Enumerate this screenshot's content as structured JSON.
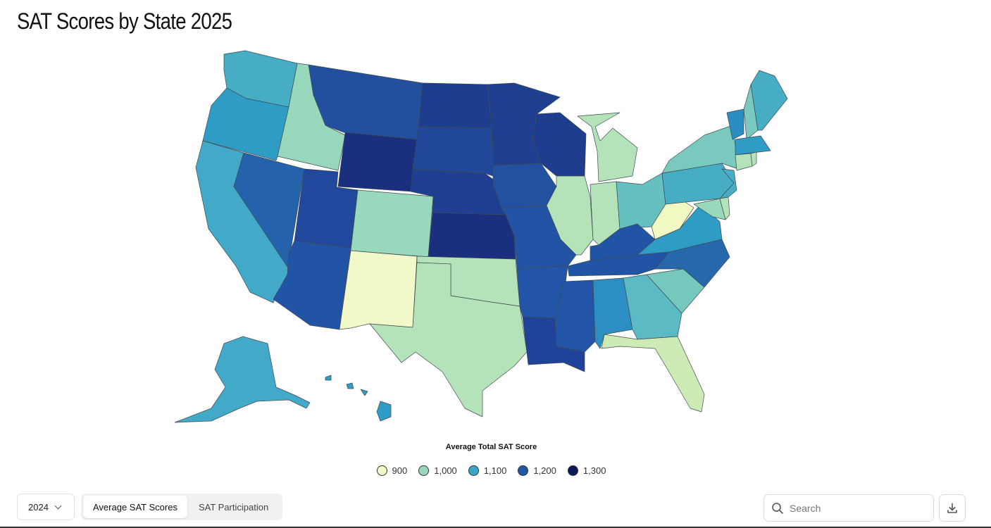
{
  "title": "SAT Scores by State 2025",
  "legend": {
    "title": "Average Total SAT Score",
    "items": [
      {
        "label": "900",
        "color": "#f2f9c9"
      },
      {
        "label": "1,000",
        "color": "#96d7bd"
      },
      {
        "label": "1,100",
        "color": "#3aa6c5"
      },
      {
        "label": "1,200",
        "color": "#2156a3"
      },
      {
        "label": "1,300",
        "color": "#0c1a5a"
      }
    ]
  },
  "controls": {
    "year": "2024",
    "tabs": [
      "Average SAT Scores",
      "SAT Participation"
    ],
    "active_tab": 0,
    "search_placeholder": "Search"
  },
  "map_data": {
    "WA": "#46adc5",
    "OR": "#2f9cc5",
    "CA": "#42aac8",
    "NV": "#2463ab",
    "ID": "#97d8bc",
    "MT": "#22509f",
    "WY": "#1a2f7e",
    "UT": "#21489c",
    "AZ": "#2254a5",
    "CO": "#98d8bc",
    "NM": "#f2f9c9",
    "ND": "#1f3d8e",
    "SD": "#21479a",
    "NE": "#1e3f92",
    "KS": "#1a2f7e",
    "OK": "#b5e3b9",
    "TX": "#b5e3b9",
    "MN": "#1f4090",
    "IA": "#2251a2",
    "MO": "#2253a5",
    "AR": "#2254a7",
    "LA": "#204298",
    "WI": "#1f3d8e",
    "IL": "#b5e3b9",
    "MI": "#b5e3b9",
    "IN": "#b5e3b9",
    "OH": "#67c0c0",
    "KY": "#2254a5",
    "TN": "#2254a5",
    "MS": "#2254a7",
    "AL": "#2c8fc3",
    "GA": "#5cbac4",
    "FL": "#cdebb5",
    "SC": "#76c8bf",
    "NC": "#2569ac",
    "VA": "#2f9cc5",
    "WV": "#f1f8c2",
    "PA": "#46adc5",
    "NY": "#79c9bf",
    "ME": "#46adc5",
    "VT": "#2b8dc2",
    "NH": "#79c9bf",
    "MA": "#2f9cc5",
    "CT": "#b5e3b9",
    "RI": "#b5e3b9",
    "NJ": "#46adc5",
    "DE": "#b5e3b9",
    "MD": "#9ad8bc",
    "AK": "#42aac8",
    "HI": "#2f9cc5"
  }
}
